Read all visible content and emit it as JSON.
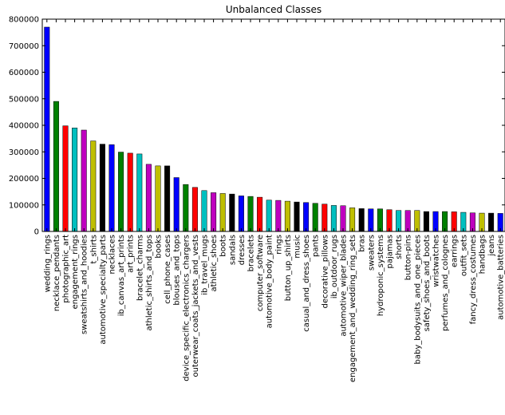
{
  "chart_data": {
    "type": "bar",
    "title": "Unbalanced Classes",
    "xlabel": "",
    "ylabel": "",
    "ylim": [
      0,
      800000
    ],
    "yticks": [
      0,
      100000,
      200000,
      300000,
      400000,
      500000,
      600000,
      700000,
      800000
    ],
    "grid": false,
    "legend": "none",
    "colors": [
      "#0000ff",
      "#008000",
      "#ff0000",
      "#00bfbf",
      "#bf00bf",
      "#bfbf00",
      "#000000"
    ],
    "categories": [
      "wedding_rings",
      "necklace_pendants",
      "photographic_art",
      "engagement_rings",
      "sweatshirts_and_hoodies",
      "t_shirts",
      "automotive_specialty_parts",
      "necklaces",
      "ib_canvas_art_prints",
      "art_prints",
      "bracelet_charms",
      "athletic_shirts_and_tops",
      "books",
      "cell_phone_cases",
      "blouses_and_tops",
      "device_specific_electronics_chargers",
      "outerwear_coats_jackets_and_vests",
      "ib_travel_mugs",
      "athletic_shoes",
      "boots",
      "sandals",
      "dresses",
      "bracelets",
      "computer_software",
      "automotive_body_paint",
      "rings",
      "button_up_shirts",
      "music",
      "casual_and_dress_shoes",
      "pants",
      "decorative_pillows",
      "ib_outdoor_rugs",
      "automotive_wiper_blades",
      "engagement_and_wedding_ring_sets",
      "bras",
      "sweaters",
      "hydroponic_systems",
      "pajamas",
      "shorts",
      "button-pins",
      "baby_bodysuits_and_one_pieces",
      "safety_shoes_and_boots",
      "wristwatches",
      "perfumes_and_colognes",
      "earrings",
      "outfit_sets",
      "fancy_dress_costumes",
      "handbags",
      "jeans",
      "automotive_batteries"
    ],
    "values": [
      770000,
      490000,
      398000,
      390000,
      382000,
      341000,
      329000,
      327000,
      299000,
      295000,
      292000,
      253000,
      247000,
      247000,
      203000,
      177000,
      166000,
      154000,
      146000,
      143000,
      141000,
      134000,
      132000,
      129000,
      118000,
      117000,
      114000,
      111000,
      109000,
      106000,
      103000,
      98000,
      97000,
      89000,
      86000,
      85000,
      85000,
      82000,
      79000,
      79000,
      79000,
      75000,
      75000,
      75000,
      74000,
      72000,
      70000,
      69000,
      69000,
      68000
    ]
  }
}
